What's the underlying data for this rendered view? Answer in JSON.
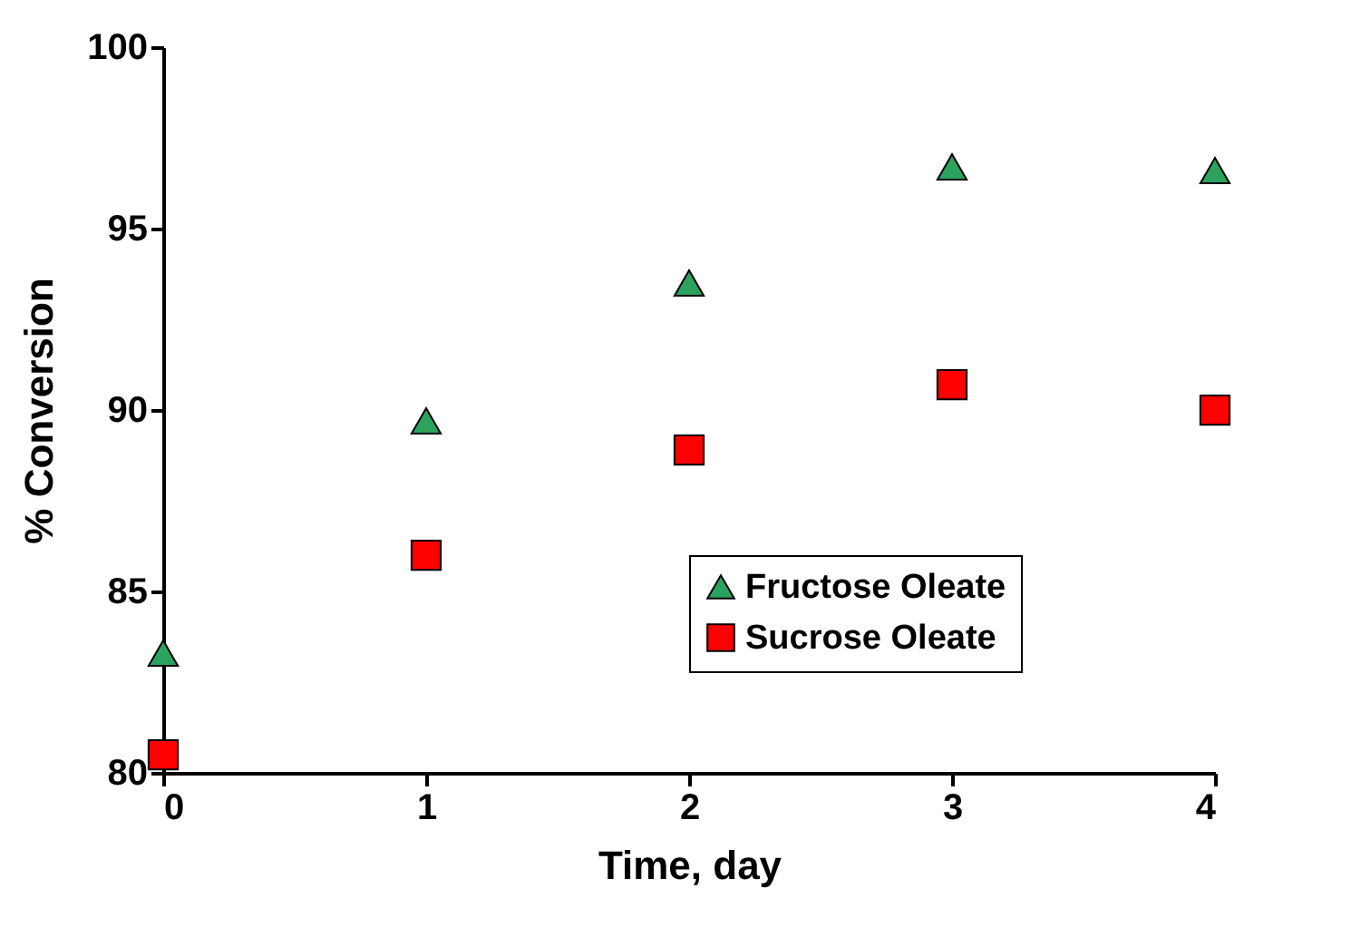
{
  "chart_data": {
    "type": "scatter",
    "xlabel": "Time, day",
    "ylabel": "% Conversion",
    "x": [
      0,
      1,
      2,
      3,
      4
    ],
    "series": [
      {
        "name": "Fructose Oleate",
        "color": "#2ca25f",
        "marker": "triangle",
        "values": [
          83.3,
          89.7,
          93.5,
          96.7,
          96.6
        ]
      },
      {
        "name": "Sucrose Oleate",
        "color": "#ff0000",
        "marker": "square",
        "values": [
          80.5,
          86.0,
          88.9,
          90.7,
          90.0
        ]
      }
    ],
    "xlim": [
      0,
      4
    ],
    "xticks": [
      0,
      1,
      2,
      3,
      4
    ],
    "ylim": [
      80,
      100
    ],
    "yticks": [
      80,
      85,
      90,
      95,
      100
    ],
    "grid": false,
    "legend": "right"
  }
}
